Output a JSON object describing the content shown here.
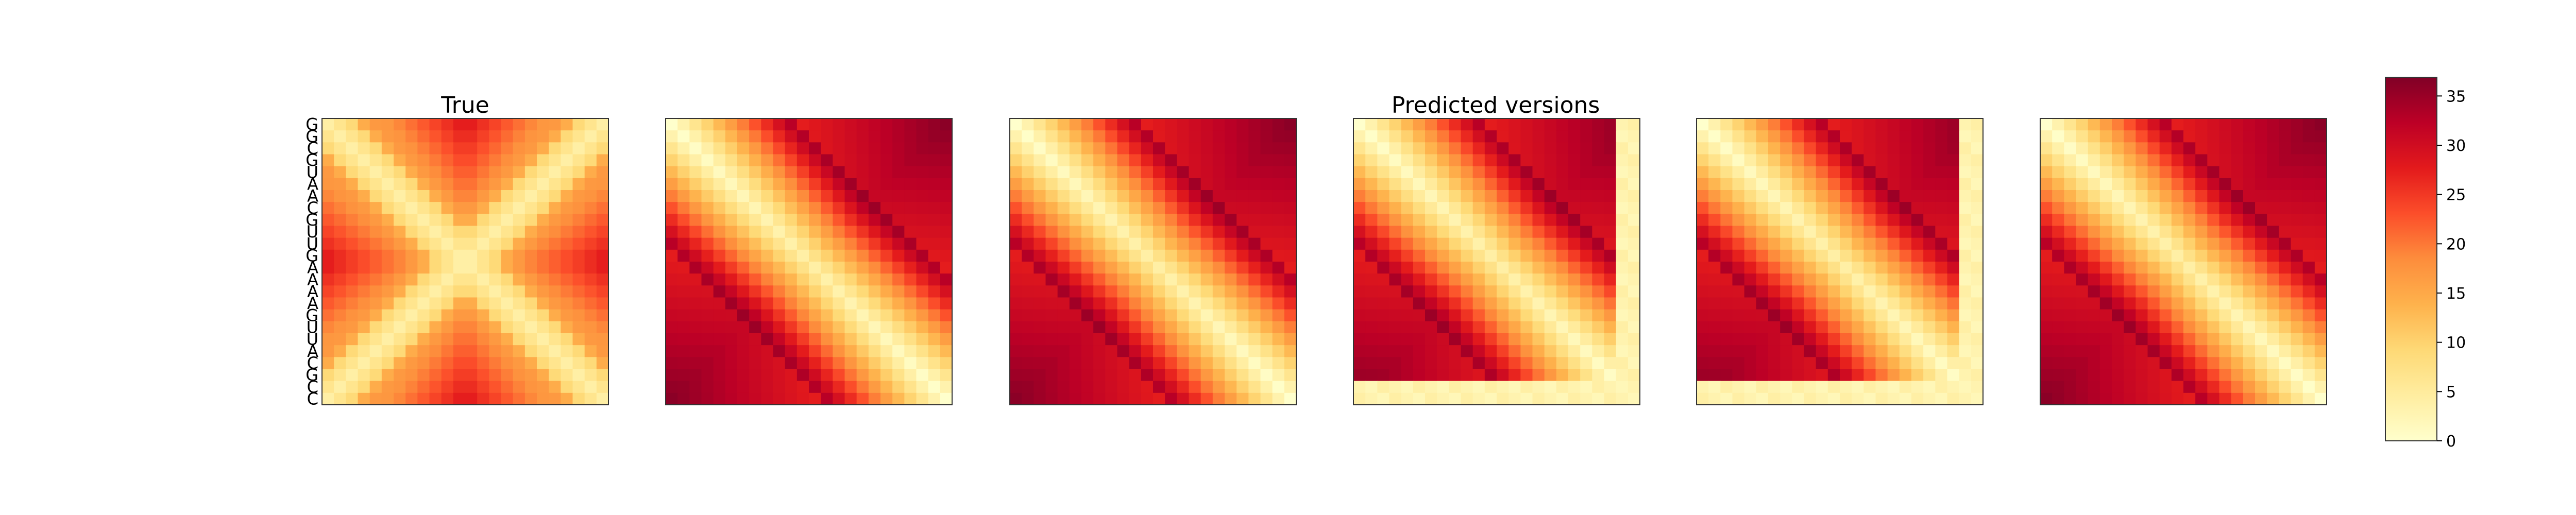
{
  "titles": {
    "true_panel": "True",
    "predicted_group": "Predicted versions"
  },
  "chart_data": [
    {
      "type": "heatmap",
      "title": "True",
      "sequence": [
        "G",
        "G",
        "C",
        "G",
        "U",
        "A",
        "A",
        "C",
        "G",
        "U",
        "U",
        "G",
        "A",
        "A",
        "A",
        "A",
        "G",
        "U",
        "U",
        "A",
        "C",
        "G",
        "C",
        "C"
      ],
      "pattern": "x-shape",
      "value_range": [
        0,
        36
      ]
    },
    {
      "type": "heatmap",
      "title": "",
      "pattern": "diagonal",
      "value_range": [
        0,
        36
      ]
    },
    {
      "type": "heatmap",
      "title": "",
      "pattern": "diagonal",
      "value_range": [
        0,
        36
      ]
    },
    {
      "type": "heatmap",
      "title": "",
      "pattern": "diagonal-light-border",
      "value_range": [
        0,
        36
      ]
    },
    {
      "type": "heatmap",
      "title": "",
      "pattern": "diagonal-light-border",
      "value_range": [
        0,
        36
      ]
    },
    {
      "type": "heatmap",
      "title": "",
      "pattern": "diagonal",
      "value_range": [
        0,
        36
      ]
    }
  ],
  "colorbar": {
    "colormap": "YlOrRd",
    "min": 0,
    "max": 36,
    "ticks": [
      0,
      5,
      10,
      15,
      20,
      25,
      30,
      35
    ],
    "tick_labels": [
      "0",
      "5",
      "10",
      "15",
      "20",
      "25",
      "30",
      "35"
    ]
  },
  "colors": {
    "colormap_stops": [
      "#ffffcc",
      "#ffeda0",
      "#fed976",
      "#feb24c",
      "#fd8d3c",
      "#fc4e2a",
      "#e31a1c",
      "#bd0026",
      "#800026"
    ]
  }
}
